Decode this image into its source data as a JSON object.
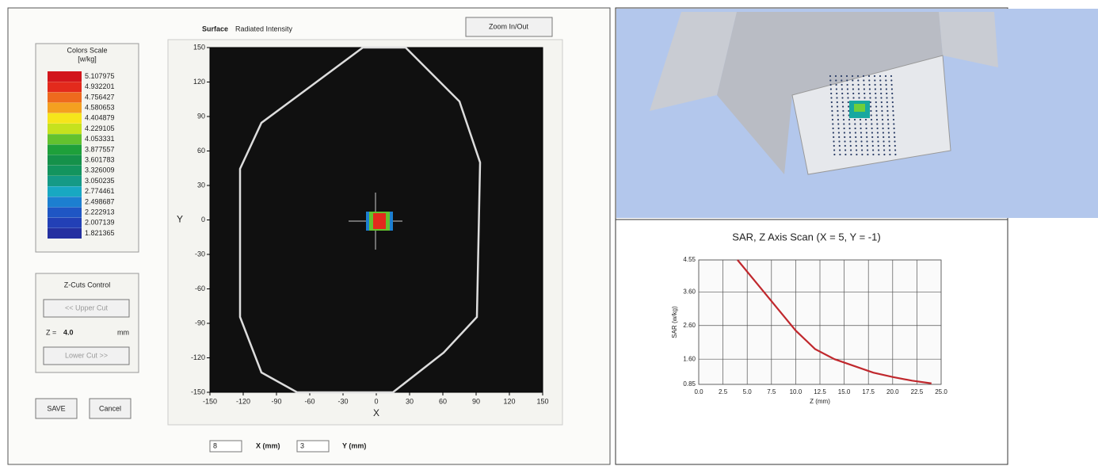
{
  "zoom_button": "Zoom In/Out",
  "surface": {
    "title": "Surface",
    "subtitle": "Radiated Intensity",
    "x_label": "X",
    "y_label": "Y",
    "xlim": [
      -150,
      150
    ],
    "ylim": [
      -150,
      150
    ],
    "xticks": [
      -150,
      -120,
      -90,
      -60,
      -30,
      0,
      30,
      60,
      90,
      120,
      150
    ],
    "yticks": [
      -150,
      -120,
      -90,
      -60,
      -30,
      0,
      30,
      60,
      90,
      120,
      150
    ]
  },
  "color_scale": {
    "title": "Colors Scale",
    "unit": "[w/kg]",
    "entries": [
      {
        "label": "5.107975",
        "color": "#d2161c"
      },
      {
        "label": "4.932201",
        "color": "#e32a1c"
      },
      {
        "label": "4.756427",
        "color": "#ee6a1e"
      },
      {
        "label": "4.580653",
        "color": "#f4a020"
      },
      {
        "label": "4.404879",
        "color": "#f6e51b"
      },
      {
        "label": "4.229105",
        "color": "#c6e21e"
      },
      {
        "label": "4.053331",
        "color": "#63c22e"
      },
      {
        "label": "3.877557",
        "color": "#1ea03a"
      },
      {
        "label": "3.601783",
        "color": "#15914a"
      },
      {
        "label": "3.326009",
        "color": "#13945e"
      },
      {
        "label": "3.050235",
        "color": "#159a86"
      },
      {
        "label": "2.774461",
        "color": "#18a8c2"
      },
      {
        "label": "2.498687",
        "color": "#1c7fd0"
      },
      {
        "label": "2.222913",
        "color": "#1f56c4"
      },
      {
        "label": "2.007139",
        "color": "#2240b6"
      },
      {
        "label": "1.821365",
        "color": "#2430a0"
      }
    ]
  },
  "z_cuts": {
    "title": "Z-Cuts Control",
    "upper_button": "<< Upper Cut",
    "z_label": "Z =",
    "z_value": "4.0",
    "z_unit": "mm",
    "lower_button": "Lower Cut >>"
  },
  "buttons": {
    "save": "SAVE",
    "cancel": "Cancel"
  },
  "coords": {
    "x_value": "8",
    "x_label": "X (mm)",
    "y_value": "3",
    "y_label": "Y (mm)"
  },
  "chart_data": {
    "type": "line",
    "title": "SAR, Z Axis Scan (X = 5, Y = -1)",
    "x_label": "Z (mm)",
    "y_label": "SAR (w/kg)",
    "x": [
      4,
      6,
      8,
      10,
      12,
      14,
      16,
      18,
      20,
      22,
      24
    ],
    "values": [
      4.55,
      3.85,
      3.15,
      2.45,
      1.9,
      1.6,
      1.4,
      1.2,
      1.07,
      0.96,
      0.88
    ],
    "color": "#c0282d",
    "xlim": [
      0,
      25
    ],
    "xticks": [
      {
        "value": 0,
        "label": "0.0"
      },
      {
        "value": 2.5,
        "label": "2.5"
      },
      {
        "value": 5,
        "label": "5.0"
      },
      {
        "value": 7.5,
        "label": "7.5"
      },
      {
        "value": 10,
        "label": "10.0"
      },
      {
        "value": 12.5,
        "label": "12.5"
      },
      {
        "value": 15,
        "label": "15.0"
      },
      {
        "value": 17.5,
        "label": "17.5"
      },
      {
        "value": 20,
        "label": "20.0"
      },
      {
        "value": 22.5,
        "label": "22.5"
      },
      {
        "value": 25,
        "label": "25.0"
      }
    ],
    "ylim": [
      0.85,
      4.55
    ],
    "yticks": [
      0.85,
      {
        "value": 1.6,
        "label": "1.60"
      },
      {
        "value": 2.6,
        "label": "2.60"
      },
      {
        "value": 3.6,
        "label": "3.60"
      },
      4.55
    ],
    "grid": true
  }
}
